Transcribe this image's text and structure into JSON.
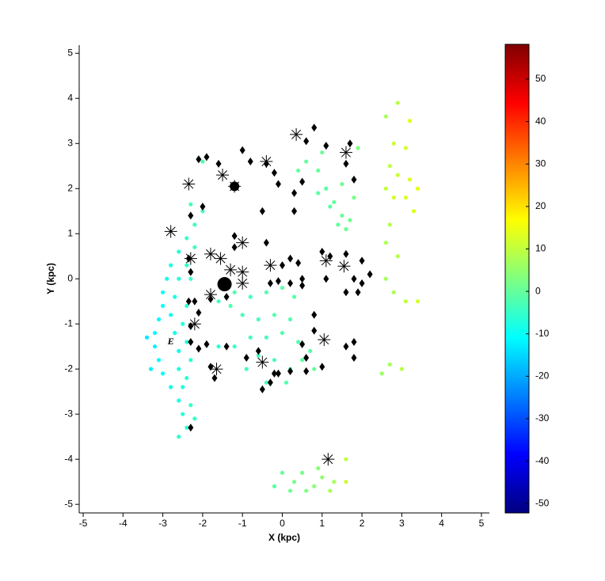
{
  "chart_data": {
    "type": "scatter",
    "xlabel": "X (kpc)",
    "ylabel": "Y (kpc)",
    "xlim": [
      -5.1,
      5.2
    ],
    "ylim": [
      -5.19,
      5.18
    ],
    "xticks": [
      -5,
      -4,
      -3,
      -2,
      -1,
      0,
      1,
      2,
      3,
      4,
      5
    ],
    "yticks": [
      -5,
      -4,
      -3,
      -2,
      -1,
      0,
      1,
      2,
      3,
      4,
      5
    ],
    "colorbar": {
      "colormap": "jet",
      "clim": [
        -52.2,
        58.2
      ],
      "ticks": [
        -50,
        -40,
        -30,
        -20,
        -10,
        0,
        10,
        20,
        30,
        40,
        50
      ]
    },
    "series": [
      {
        "marker": "dot",
        "x": [
          -2.4,
          -2.6,
          -2.8,
          -2.9,
          -3.0,
          -3.0,
          -3.1,
          -3.2,
          -3.2,
          -3.1,
          -3.0,
          -2.8,
          -2.6,
          -2.5,
          -2.4,
          -2.6,
          -2.2,
          -2.4,
          -2.6,
          -2.7,
          -2.8,
          -2.7,
          -2.6,
          -2.6,
          -2.5,
          -2.3,
          -2.2,
          -2.3,
          -2.4,
          -2.5,
          -2.4,
          -2.3,
          -2.4,
          -2.0,
          -2.2,
          -2.0,
          -2.3,
          -3.4,
          -3.3,
          -1.2,
          -0.8,
          -0.4,
          0,
          0.3,
          -1.0,
          -0.6,
          -0.2,
          0.2,
          -0.8,
          -0.4,
          0,
          0.4,
          -1.2,
          -0.6,
          -0.2,
          0.2,
          0.5,
          0.7,
          0.8,
          -1.6,
          -0.9,
          -0.4,
          0.1,
          -1.3,
          -1.6,
          0.6,
          0.9,
          1.1,
          1.3,
          1.5,
          1.6,
          1.4,
          1.2,
          0.9,
          1.5,
          1.8,
          1.0,
          0.4,
          1.9,
          1.7,
          2.6,
          2.9,
          3.2,
          2.8,
          3.1,
          2.7,
          2.9,
          3.2,
          2.6,
          2.8,
          3.1,
          3.4,
          3.3,
          2.7,
          2.6,
          2.9,
          2.6,
          2.8,
          3.1,
          3.4,
          2.7,
          3.0,
          2.5,
          0,
          0.3,
          0.5,
          0.8,
          1.0,
          1.3,
          1.6,
          0.9,
          0.2,
          0.6,
          1.2,
          1.6,
          -0.2
        ],
        "y": [
          0.9,
          0.6,
          0.3,
          0,
          -0.3,
          -0.6,
          -0.9,
          -1.2,
          -1.5,
          -1.8,
          -2.1,
          -2.4,
          -2.7,
          -3.0,
          -3.3,
          -3.5,
          0.7,
          0.3,
          0,
          -0.4,
          -0.8,
          -1.2,
          -1.6,
          -2.0,
          -2.4,
          -2.8,
          -3.1,
          0.0,
          -0.6,
          -1.0,
          -1.4,
          -1.8,
          -2.2,
          1.5,
          1.2,
          2.6,
          1.65,
          -1.3,
          -2.0,
          -0.3,
          -0.4,
          -0.3,
          -0.2,
          -0.4,
          -0.8,
          -0.9,
          -0.8,
          -0.9,
          -1.3,
          -1.3,
          -1.2,
          -1.4,
          -1.5,
          -1.7,
          -1.8,
          -2.0,
          -1.8,
          -1.6,
          -2.0,
          -1.5,
          -2.0,
          -2.3,
          -2.3,
          -0.6,
          -0.5,
          2.6,
          2.4,
          2.0,
          1.7,
          1.4,
          1.1,
          1.2,
          1.6,
          1.9,
          2.1,
          1.8,
          2.8,
          2.4,
          2.9,
          1.3,
          3.6,
          3.9,
          3.5,
          3.0,
          2.9,
          2.5,
          2.3,
          2.2,
          2.0,
          1.8,
          1.8,
          2.0,
          1.5,
          1.2,
          0.8,
          0.5,
          0.0,
          -0.3,
          -0.5,
          -0.5,
          -1.9,
          -2.0,
          -2.1,
          -4.3,
          -4.5,
          -4.3,
          -4.6,
          -4.4,
          -4.5,
          -4.5,
          -4.2,
          -4.7,
          -4.7,
          -4.7,
          -4.0,
          -4.6
        ],
        "c": [
          -5,
          -7,
          -8,
          -9,
          -10,
          -10,
          -11,
          -11,
          -12,
          -11,
          -10,
          -9,
          -8,
          -7,
          -6,
          -6,
          -4,
          -6,
          -7,
          -8,
          -9,
          -9,
          -9,
          -8,
          -7,
          -5,
          -5,
          -5,
          -6,
          -7,
          -7,
          -6,
          -6,
          -3,
          -4,
          -2,
          -3,
          -13,
          -12,
          -2,
          -3,
          -2,
          -1,
          -1,
          -3,
          -3,
          -2,
          -2,
          -4,
          -3,
          -2,
          -2,
          -5,
          -4,
          -3,
          -2,
          -1,
          -1,
          0,
          -6,
          -4,
          -3,
          -2,
          -2,
          -3,
          0,
          0,
          -1,
          0,
          0,
          1,
          0,
          -1,
          -1,
          1,
          2,
          1,
          0,
          3,
          1,
          7,
          9,
          14,
          11,
          12,
          10,
          11,
          13,
          10,
          12,
          13,
          14,
          13,
          9,
          8,
          9,
          7,
          8,
          10,
          12,
          7,
          9,
          6,
          0,
          2,
          2,
          4,
          5,
          7,
          11,
          4,
          1,
          3,
          7,
          10,
          -1
        ]
      },
      {
        "marker": "diamond",
        "color": "#000000",
        "x": [
          0.8,
          0.6,
          1.7,
          1.1,
          -1.0,
          -0.8,
          -1.6,
          -0.4,
          -2.1,
          -1.9,
          -0.2,
          1.6,
          1.8,
          -0.1,
          0.5,
          0.3,
          0.3,
          -0.5,
          -2.0,
          -2.3,
          -1.2,
          -0.4,
          -1.2,
          0.2,
          1.0,
          -2.3,
          -2.35,
          0.0,
          0.4,
          1.2,
          1.6,
          2.0,
          -0.1,
          -0.3,
          0.5,
          1.1,
          1.8,
          2.0,
          2.2,
          1.6,
          1.9,
          -1.8,
          -2.2,
          -1.4,
          -2.1,
          -2.3,
          0.8,
          0.8,
          1.8,
          1.6,
          1.8,
          -2.1,
          -1.9,
          -1.4,
          -0.9,
          -0.6,
          -0.2,
          0.2,
          0.6,
          1.0,
          0.5,
          -1.8,
          -1.7,
          -0.3,
          -0.5,
          -2.3,
          -0.1,
          0.6,
          -2.35,
          -2.3,
          0.5,
          0.2
        ],
        "y": [
          3.35,
          3.05,
          3.0,
          2.95,
          2.85,
          2.6,
          2.55,
          2.55,
          2.65,
          2.7,
          2.35,
          2.55,
          2.2,
          2.1,
          2.15,
          1.9,
          1.5,
          1.5,
          1.6,
          1.4,
          0.95,
          0.8,
          0.7,
          0.45,
          0.6,
          0.15,
          0.45,
          0.3,
          0.35,
          0.5,
          0.55,
          0.4,
          -0.05,
          -0.1,
          -0.15,
          0.0,
          0.0,
          -0.1,
          0.1,
          -0.3,
          -0.3,
          -0.45,
          -0.5,
          -0.4,
          -0.75,
          -1.05,
          -0.8,
          -1.15,
          -1.4,
          -1.5,
          -1.75,
          -1.55,
          -1.45,
          -1.5,
          -1.75,
          -1.6,
          -2.1,
          -2.05,
          -2.05,
          -1.95,
          -1.45,
          -1.95,
          -2.2,
          -2.3,
          -2.45,
          -3.3,
          -2.1,
          -1.75,
          -0.5,
          -1.4,
          0.0,
          -0.1
        ]
      },
      {
        "marker": "star",
        "color": "#000000",
        "x": [
          0.35,
          1.6,
          -1.5,
          -2.35,
          -0.4,
          -1.2,
          -2.8,
          -1.0,
          -1.8,
          -2.3,
          -1.55,
          -1.3,
          -1.0,
          -0.3,
          -1.0,
          -1.8,
          -2.2,
          1.1,
          1.55,
          1.05,
          -0.5,
          -1.65,
          1.15
        ],
        "y": [
          3.2,
          2.8,
          2.3,
          2.1,
          2.6,
          2.05,
          1.05,
          0.8,
          0.55,
          0.45,
          0.45,
          0.2,
          0.15,
          0.3,
          -0.1,
          -0.35,
          -1.0,
          0.4,
          0.28,
          -1.35,
          -1.85,
          -2.0,
          -4.0
        ]
      },
      {
        "marker": "circle",
        "color": "#000000",
        "x": [
          -1.45,
          -1.2
        ],
        "y": [
          -0.12,
          2.05
        ],
        "size": [
          9,
          6
        ]
      }
    ],
    "annotations": [
      {
        "text": "E",
        "x": -2.8,
        "y": -1.4
      }
    ]
  }
}
